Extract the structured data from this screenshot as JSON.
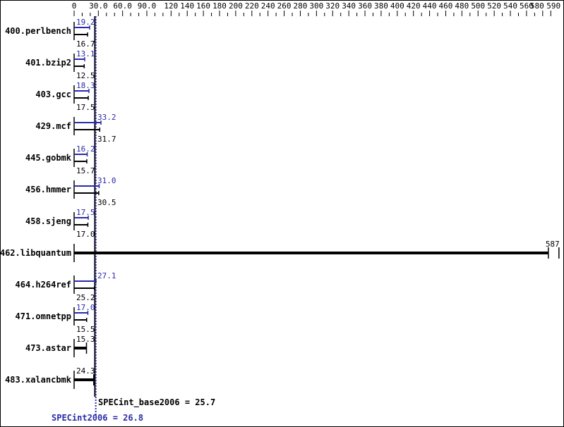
{
  "chart_data": {
    "type": "bar",
    "orientation": "horizontal",
    "xlim": [
      0,
      590
    ],
    "x_tick_labels": [
      "0",
      "30.0",
      "60.0",
      "90.0",
      "120",
      "140",
      "160",
      "180",
      "200",
      "220",
      "240",
      "260",
      "280",
      "300",
      "320",
      "340",
      "360",
      "380",
      "400",
      "420",
      "440",
      "460",
      "480",
      "500",
      "520",
      "540",
      "560",
      "580",
      "590"
    ],
    "x_tick_values": [
      0,
      30,
      60,
      90,
      120,
      140,
      160,
      180,
      200,
      220,
      240,
      260,
      280,
      300,
      320,
      340,
      360,
      380,
      400,
      420,
      440,
      460,
      480,
      500,
      520,
      540,
      560,
      580,
      590
    ],
    "categories": [
      "400.perlbench",
      "401.bzip2",
      "403.gcc",
      "429.mcf",
      "445.gobmk",
      "456.hmmer",
      "458.sjeng",
      "462.libquantum",
      "464.h264ref",
      "471.omnetpp",
      "473.astar",
      "483.xalancbmk"
    ],
    "series": [
      {
        "name": "SPECint2006",
        "color": "#2a2aa8",
        "values": [
          19.2,
          13.1,
          18.3,
          33.2,
          16.2,
          31.0,
          17.5,
          null,
          27.1,
          17.0,
          null,
          null
        ]
      },
      {
        "name": "SPECint_base2006",
        "color": "#000000",
        "values": [
          16.7,
          12.5,
          17.5,
          31.7,
          15.7,
          30.5,
          17.0,
          587,
          25.2,
          15.5,
          15.3,
          24.3
        ]
      }
    ],
    "single_value_labels": {
      "462.libquantum": "587",
      "473.astar": "15.3",
      "483.xalancbmk": "24.3"
    },
    "value_labels_peak": [
      "19.2",
      "13.1",
      "18.3",
      "33.2",
      "16.2",
      "31.0",
      "17.5",
      "",
      "27.1",
      "17.0",
      "",
      ""
    ],
    "value_labels_base": [
      "16.7",
      "12.5",
      "17.5",
      "31.7",
      "15.7",
      "30.5",
      "17.0",
      "",
      "25.2",
      "15.5",
      "",
      ""
    ],
    "base_mean": {
      "label": "SPECint_base2006 = 25.7",
      "value": 25.7
    },
    "peak_mean": {
      "label": "SPECint2006 = 26.8",
      "value": 26.8
    },
    "grid": false
  }
}
